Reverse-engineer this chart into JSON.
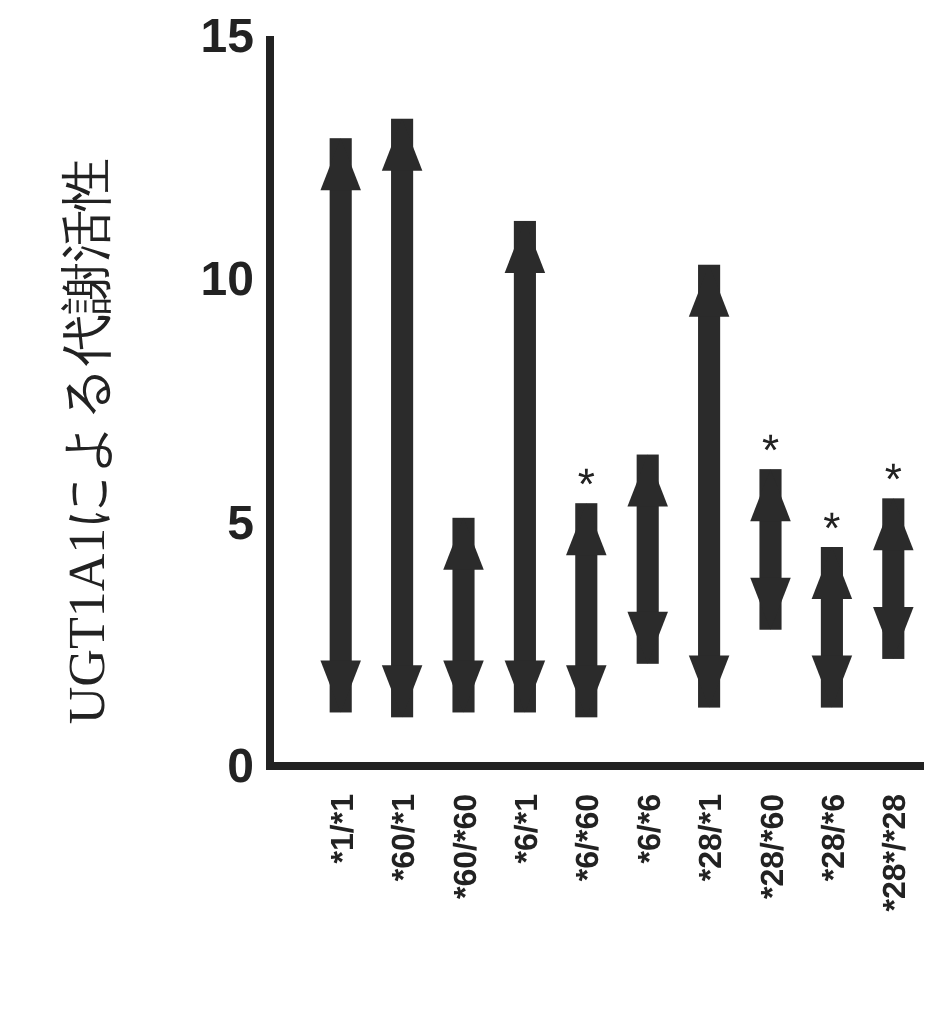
{
  "chart_data": {
    "type": "bar",
    "ylabel": "UGT1A1による代謝活性",
    "categories": [
      "*1/*1",
      "*60/*1",
      "*60/*60",
      "*6/*1",
      "*6/*60",
      "*6/*6",
      "*28/*1",
      "*28/*60",
      "*28/*6",
      "*28*/*28"
    ],
    "base": [
      1.1,
      1.0,
      1.1,
      1.1,
      1.0,
      2.1,
      1.2,
      2.8,
      1.2,
      2.2
    ],
    "values": [
      11.8,
      12.3,
      4.0,
      10.1,
      4.4,
      4.3,
      9.1,
      3.3,
      3.3,
      3.3
    ],
    "color": "#2b2b2b",
    "ylim": [
      0,
      15
    ],
    "yticks": [
      0,
      5,
      10,
      15
    ],
    "grid": false,
    "annotations": [
      {
        "text": "*",
        "x": "*6/*60",
        "y": 5.4
      },
      {
        "text": "*",
        "x": "*28/*60",
        "y": 6.1
      },
      {
        "text": "*",
        "x": "*28/*6",
        "y": 4.5
      },
      {
        "text": "*",
        "x": "*28*/*28",
        "y": 5.5
      }
    ]
  }
}
